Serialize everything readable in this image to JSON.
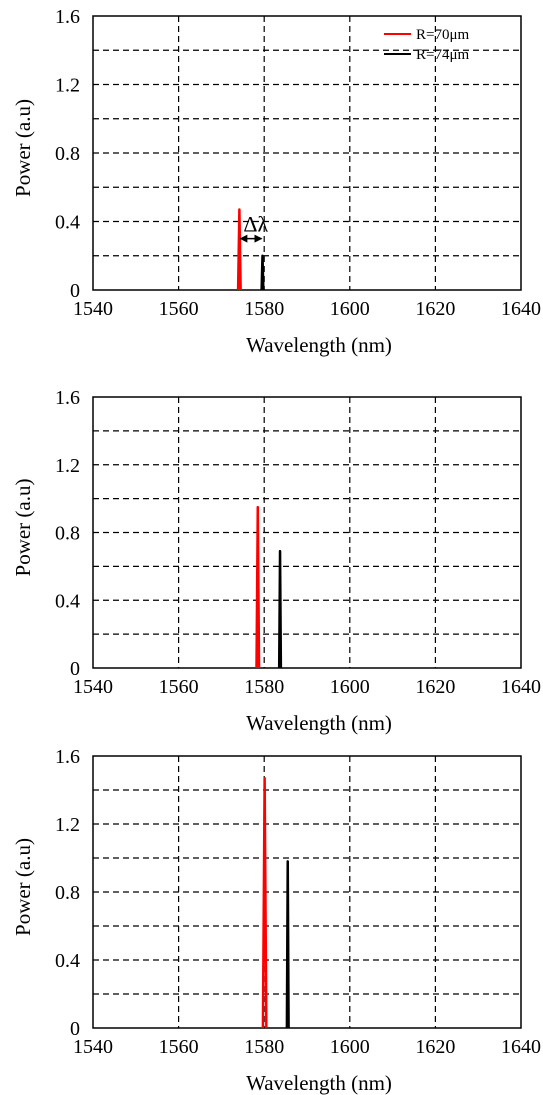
{
  "chart_data": [
    {
      "type": "line",
      "xlabel": "Wavelength (nm)",
      "ylabel": "Power (a.u)",
      "xlim": [
        1540,
        1640
      ],
      "ylim": [
        0,
        1.6
      ],
      "x_ticks": [
        "1540",
        "1560",
        "1580",
        "1600",
        "1620",
        "1640"
      ],
      "y_ticks": [
        "0",
        "0.4",
        "0.8",
        "1.2",
        "1.6"
      ],
      "grid": true,
      "legend": "top-right",
      "series": [
        {
          "name": "R=70μm",
          "color": "#ff0000",
          "peak_x": 1574.2,
          "peak_y": 0.47,
          "values": [
            [
              1573.9,
              0
            ],
            [
              1574.2,
              0.47
            ],
            [
              1574.5,
              0
            ]
          ]
        },
        {
          "name": "R=74μm",
          "color": "#000000",
          "peak_x": 1579.6,
          "peak_y": 0.2,
          "values": [
            [
              1579.4,
              0
            ],
            [
              1579.6,
              0.2
            ],
            [
              1579.8,
              0
            ]
          ]
        }
      ],
      "annotation": {
        "text": "Δλ",
        "from_x": 1574.2,
        "to_x": 1579.6
      }
    },
    {
      "type": "line",
      "xlabel": "Wavelength (nm)",
      "ylabel": "Power (a.u)",
      "xlim": [
        1540,
        1640
      ],
      "ylim": [
        0,
        1.6
      ],
      "x_ticks": [
        "1540",
        "1560",
        "1580",
        "1600",
        "1620",
        "1640"
      ],
      "y_ticks": [
        "0",
        "0.4",
        "0.8",
        "1.2",
        "1.6"
      ],
      "grid": true,
      "series": [
        {
          "color": "#ff0000",
          "peak_x": 1578.5,
          "peak_y": 0.95,
          "values": [
            [
              1578.2,
              0
            ],
            [
              1578.5,
              0.95
            ],
            [
              1578.8,
              0
            ]
          ]
        },
        {
          "color": "#000000",
          "peak_x": 1583.7,
          "peak_y": 0.69,
          "values": [
            [
              1583.5,
              0
            ],
            [
              1583.7,
              0.69
            ],
            [
              1583.9,
              0
            ]
          ]
        }
      ]
    },
    {
      "type": "line",
      "xlabel": "Wavelength (nm)",
      "ylabel": "Power (a.u)",
      "xlim": [
        1540,
        1640
      ],
      "ylim": [
        0,
        1.6
      ],
      "x_ticks": [
        "1540",
        "1560",
        "1580",
        "1600",
        "1620",
        "1640"
      ],
      "y_ticks": [
        "0",
        "0.4",
        "0.8",
        "1.2",
        "1.6"
      ],
      "grid": true,
      "series": [
        {
          "color": "#ff0000",
          "peak_x": 1580.1,
          "peak_y": 1.47,
          "values": [
            [
              1579.7,
              0
            ],
            [
              1580.1,
              1.47
            ],
            [
              1580.5,
              0
            ]
          ]
        },
        {
          "color": "#000000",
          "peak_x": 1585.5,
          "peak_y": 0.98,
          "values": [
            [
              1585.3,
              0
            ],
            [
              1585.5,
              0.98
            ],
            [
              1585.7,
              0
            ]
          ]
        }
      ]
    }
  ]
}
